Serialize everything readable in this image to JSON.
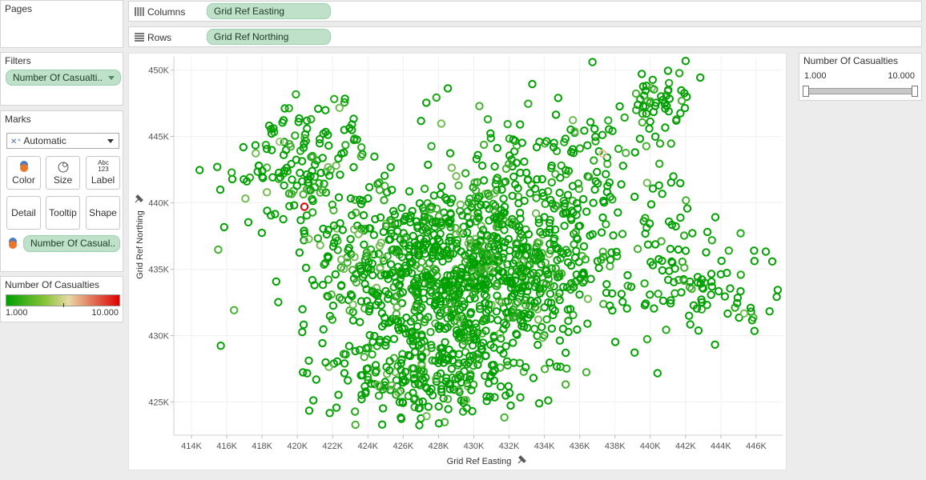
{
  "pages": {
    "title": "Pages"
  },
  "filters": {
    "title": "Filters",
    "pill": "Number Of Casualti.."
  },
  "marks": {
    "title": "Marks",
    "mark_type": "Automatic",
    "buttons": {
      "color": "Color",
      "size": "Size",
      "label": "Label",
      "detail": "Detail",
      "tooltip": "Tooltip",
      "shape": "Shape"
    },
    "color_pill": "Number Of Casual.."
  },
  "color_legend": {
    "title": "Number Of Casualties",
    "min": "1.000",
    "max": "10.000",
    "colors": [
      "#00a000",
      "#8cc43a",
      "#e8d9a6",
      "#dd0000"
    ]
  },
  "shelves": {
    "columns_label": "Columns",
    "columns_pill": "Grid Ref Easting",
    "rows_label": "Rows",
    "rows_pill": "Grid Ref Northing"
  },
  "slider": {
    "title": "Number Of Casualties",
    "min": "1.000",
    "max": "10.000"
  },
  "chart_data": {
    "type": "scatter",
    "xlabel": "Grid Ref Easting",
    "ylabel": "Grid Ref Northing",
    "x_ticks": [
      "414K",
      "416K",
      "418K",
      "420K",
      "422K",
      "424K",
      "426K",
      "428K",
      "430K",
      "432K",
      "434K",
      "436K",
      "438K",
      "440K",
      "442K",
      "444K",
      "446K"
    ],
    "y_ticks": [
      "450K",
      "445K",
      "440K",
      "435K",
      "430K",
      "425K"
    ],
    "xlim": [
      413000,
      447500
    ],
    "ylim": [
      422500,
      451000
    ],
    "grid": true,
    "point_count": 1800,
    "color_scale": {
      "min": 1,
      "max": 10,
      "low": "#00a000",
      "mid": "#e8d9a6",
      "high": "#dd0000"
    },
    "clusters": [
      {
        "cx": 429500,
        "cy": 435000,
        "sx": 4000,
        "sy": 3500,
        "n": 1100
      },
      {
        "cx": 420500,
        "cy": 443000,
        "sx": 1800,
        "sy": 2500,
        "n": 140
      },
      {
        "cx": 436000,
        "cy": 442000,
        "sx": 3200,
        "sy": 3500,
        "n": 160
      },
      {
        "cx": 440500,
        "cy": 447500,
        "sx": 900,
        "sy": 1300,
        "n": 45
      },
      {
        "cx": 427500,
        "cy": 427000,
        "sx": 3000,
        "sy": 1600,
        "n": 220
      },
      {
        "cx": 442000,
        "cy": 434500,
        "sx": 2200,
        "sy": 2500,
        "n": 90
      },
      {
        "cx": 416500,
        "cy": 442000,
        "sx": 900,
        "sy": 500,
        "n": 12
      },
      {
        "cx": 445000,
        "cy": 432500,
        "sx": 600,
        "sy": 800,
        "n": 12
      }
    ],
    "highlights": [
      {
        "x": 437300,
        "y": 443700,
        "v": 6
      },
      {
        "x": 420400,
        "y": 439700,
        "v": 10
      },
      {
        "x": 419000,
        "y": 444600,
        "v": 4
      }
    ]
  }
}
